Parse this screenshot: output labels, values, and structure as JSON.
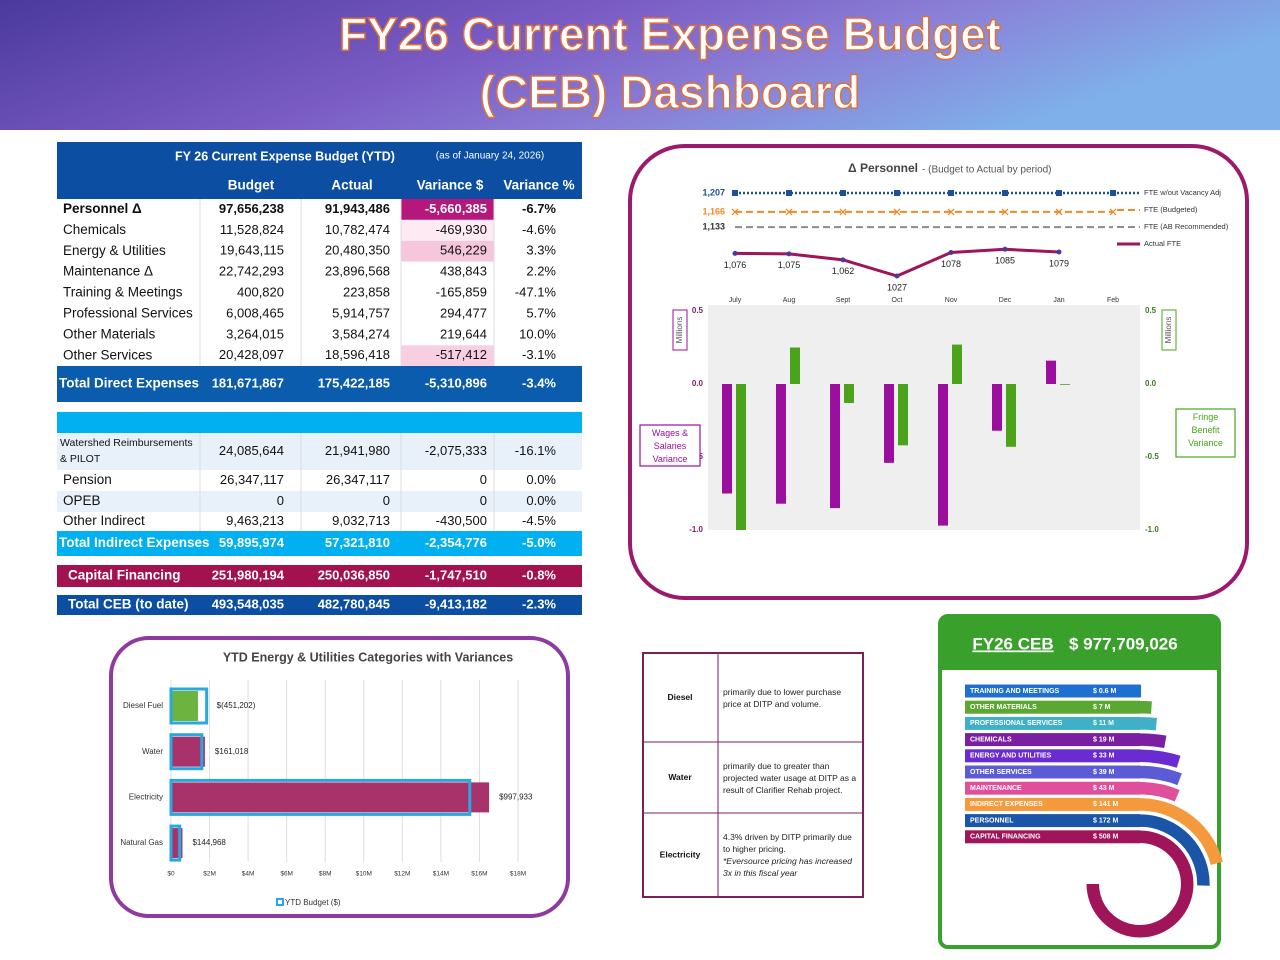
{
  "header": {
    "title_lines": [
      "FY26 Current Expense Budget",
      "(CEB) Dashboard"
    ]
  },
  "table": {
    "title": "FY 26 Current Expense Budget (YTD)",
    "as_of": "(as of January 24, 2026)",
    "columns": [
      "Budget",
      "Actual",
      "Variance $",
      "Variance %"
    ],
    "rows": [
      {
        "label": "Personnel Δ",
        "cells": [
          "97,656,238",
          "91,943,486",
          "-5,660,385",
          "-6.7%"
        ]
      },
      {
        "label": "Chemicals",
        "cells": [
          "11,528,824",
          "10,782,474",
          "-469,930",
          "-4.6%"
        ]
      },
      {
        "label": "Energy & Utilities",
        "cells": [
          "19,643,115",
          "20,480,350",
          "546,229",
          "3.3%"
        ]
      },
      {
        "label": "Maintenance Δ",
        "cells": [
          "22,742,293",
          "23,896,568",
          "438,843",
          "2.2%"
        ]
      },
      {
        "label": "Training & Meetings",
        "cells": [
          "400,820",
          "223,858",
          "-165,859",
          "-47.1%"
        ]
      },
      {
        "label": "Professional Services",
        "cells": [
          "6,008,465",
          "5,914,757",
          "294,477",
          "5.7%"
        ]
      },
      {
        "label": "Other Materials",
        "cells": [
          "3,264,015",
          "3,584,274",
          "219,644",
          "10.0%"
        ]
      },
      {
        "label": "Other Services",
        "cells": [
          "20,428,097",
          "18,596,418",
          "-517,412",
          "-3.1%"
        ]
      },
      {
        "label": "Total Direct Expenses",
        "cells": [
          "181,671,867",
          "175,422,185",
          "-5,310,896",
          "-3.4%"
        ]
      },
      {
        "label": "Watershed Reimbursements & PILOT",
        "cells": [
          "24,085,644",
          "21,941,980",
          "-2,075,333",
          "-16.1%"
        ]
      },
      {
        "label": "Pension",
        "cells": [
          "26,347,117",
          "26,347,117",
          "0",
          "0.0%"
        ]
      },
      {
        "label": "OPEB",
        "cells": [
          "0",
          "0",
          "0",
          "0.0%"
        ]
      },
      {
        "label": "Other Indirect",
        "cells": [
          "9,463,213",
          "9,032,713",
          "-430,500",
          "-4.5%"
        ]
      },
      {
        "label": "Total Indirect Expenses",
        "cells": [
          "59,895,974",
          "57,321,810",
          "-2,354,776",
          "-5.0%"
        ]
      },
      {
        "label": "Capital Financing",
        "cells": [
          "251,980,194",
          "250,036,850",
          "-1,747,510",
          "-0.8%"
        ]
      },
      {
        "label": "Total CEB (to date)",
        "cells": [
          "493,548,035",
          "482,780,845",
          "-9,413,182",
          "-2.3%"
        ]
      }
    ]
  },
  "notes": {
    "rows": [
      {
        "label": "Diesel",
        "text": "primarily due to lower purchase price at DITP and volume."
      },
      {
        "label": "Water",
        "text": "primarily due to greater than projected water usage at DITP as a result of Clarifier Rehab project."
      },
      {
        "label": "Electricity",
        "text": "4.3% driven by DITP primarily due to higher pricing.",
        "emphasis": "*Eversource pricing has increased 3x in this fiscal year"
      }
    ]
  },
  "chart_data": [
    {
      "type": "bar",
      "title": "Δ Personnel",
      "subtitle": "- (Budget to Actual by period)",
      "categories": [
        "July",
        "Aug",
        "Sept",
        "Oct",
        "Nov",
        "Dec",
        "Jan",
        "Feb"
      ],
      "ylabel": "Millions",
      "y2label": "Millions",
      "ylim": [
        -1,
        0.5
      ],
      "yticks": [
        {
          "value": -1,
          "label": "-1.0"
        },
        {
          "value": -0.5,
          "label": "-0.5"
        },
        {
          "value": 0,
          "label": "0.0"
        },
        0.5
      ],
      "y2lim": [
        -1,
        0.5
      ],
      "y2ticks": [
        {
          "value": -1,
          "label": "-1.0"
        },
        {
          "value": -0.5,
          "label": "-0.5"
        },
        {
          "value": 0,
          "label": "0.0"
        },
        0.5
      ],
      "series": [
        {
          "name": "Wages & Salaries Variance",
          "color": "#9b0f9e",
          "values": [
            -0.75,
            -0.82,
            -0.85,
            -0.54,
            -0.97,
            -0.32,
            0.16,
            null
          ]
        },
        {
          "name": "Fringe Benefit Variance",
          "color": "#4aa31a",
          "axis": "y2",
          "values": [
            -1.0,
            0.25,
            -0.13,
            -0.42,
            0.27,
            -0.43,
            -0.005,
            null
          ]
        },
        {
          "name": "FTE w/out Vacancy Adj",
          "type": "line",
          "color": "#1f4e9c",
          "values": [
            1207,
            1207,
            1207,
            1207,
            1207,
            1207,
            1207,
            1207
          ],
          "value_labels": [
            "1,207",
            null,
            null,
            null,
            null,
            null,
            null,
            null
          ]
        },
        {
          "name": "FTE (Budgeted)",
          "type": "line",
          "color": "#f08a24",
          "values": [
            1166,
            1166,
            1166,
            1166,
            1166,
            1166,
            1166,
            1166
          ],
          "value_labels": [
            "1,166",
            null,
            null,
            null,
            null,
            null,
            null,
            null
          ]
        },
        {
          "name": "FTE (AB Recommended)",
          "type": "line",
          "color": "#8c8c8c",
          "values": [
            1133,
            1133,
            1133,
            1133,
            1133,
            1133,
            1133,
            1133
          ],
          "value_labels": [
            "1,133",
            null,
            null,
            null,
            null,
            null,
            null,
            null
          ]
        },
        {
          "name": "Actual FTE",
          "type": "line",
          "color": "#a0145a",
          "values": [
            1076,
            1075,
            1062,
            1027,
            1078,
            1085,
            1079,
            null
          ],
          "value_labels": [
            "1,076",
            "1,075",
            "1,062",
            "1027",
            "1078",
            "1085",
            "1079",
            null
          ]
        }
      ]
    },
    {
      "type": "hbar",
      "title": "YTD Energy & Utilities Categories with Variances",
      "categories": [
        "Diesel Fuel",
        "Water",
        "Electricity",
        "Natural Gas"
      ],
      "xlim": [
        0,
        18000000
      ],
      "xticks": [
        {
          "value": 0,
          "label": "$0"
        },
        {
          "value": 2000000,
          "label": "$2M"
        },
        {
          "value": 4000000,
          "label": "$4M"
        },
        {
          "value": 6000000,
          "label": "$6M"
        },
        {
          "value": 8000000,
          "label": "$8M"
        },
        {
          "value": 10000000,
          "label": "$10M"
        },
        {
          "value": 12000000,
          "label": "$12M"
        },
        {
          "value": 14000000,
          "label": "$14M"
        },
        {
          "value": 16000000,
          "label": "$16M"
        },
        {
          "value": 18000000,
          "label": "$18M"
        }
      ],
      "grid": true,
      "series": [
        {
          "name": "YTD Budget ($)",
          "color": "#29a8e0",
          "values": [
            1850000,
            1600000,
            15500000,
            450000
          ]
        },
        {
          "colors": [
            "#6db33f",
            "#a8336a",
            "#a8336a",
            "#a8336a"
          ],
          "values": [
            1400000,
            1760000,
            16500000,
            595000
          ]
        }
      ],
      "labels": [
        "$(451,202)",
        "$161,018",
        "$997,933",
        "$144,968"
      ]
    },
    {
      "type": "radial_bar",
      "title": "FY26 CEB",
      "total": "$ 977,709,026",
      "categories": [
        "TRAINING AND MEETINGS",
        "OTHER MATERIALS",
        "PROFESSIONAL SERVICES",
        "CHEMICALS",
        "ENERGY AND UTILITIES",
        "OTHER SERVICES",
        "MAINTENANCE",
        "INDIRECT EXPENSES",
        "PERSONNEL",
        "CAPITAL FINANCING"
      ],
      "values": [
        0.6,
        7,
        11,
        19,
        33,
        39,
        43,
        141,
        172,
        508
      ],
      "value_labels": [
        "$ 0.6 M",
        "$ 7 M",
        "$ 11 M",
        "$ 19 M",
        "$ 33 M",
        "$ 39 M",
        "$ 43 M",
        "$ 141 M",
        "$ 172 M",
        "$ 508 M"
      ],
      "colors": [
        "#1f6fd1",
        "#5aa832",
        "#3fb0c8",
        "#7b1fa2",
        "#6a2bd0",
        "#5b5bd6",
        "#e04f9c",
        "#f59a3c",
        "#1a55a8",
        "#a0145a"
      ]
    }
  ]
}
